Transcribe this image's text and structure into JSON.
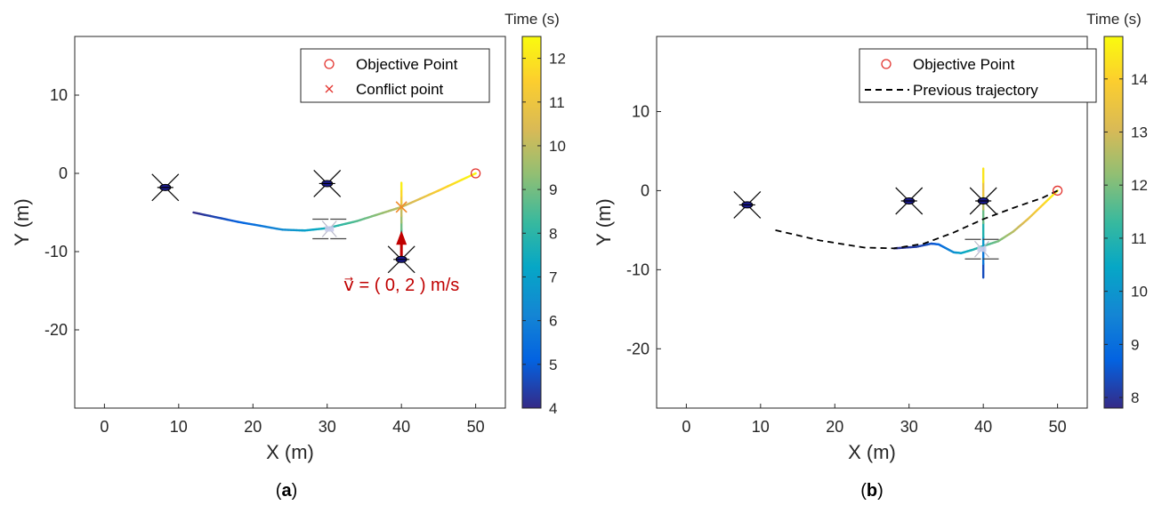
{
  "captions": {
    "a": {
      "open": "(",
      "letter": "a",
      "close": ")"
    },
    "b": {
      "open": "(",
      "letter": "b",
      "close": ")"
    }
  },
  "colors": {
    "objective": "#e3342f",
    "conflict": "#e3342f",
    "velocity_arrow": "#c00000",
    "previous_trajectory": "#000000",
    "drone": "#111111",
    "drone_hub": "#1a1a8c"
  },
  "icons": [
    "drone-icon",
    "objective-point-icon",
    "conflict-point-icon",
    "velocity-arrow-icon"
  ],
  "chart_data": [
    {
      "type": "line",
      "title": "",
      "xlabel": "X (m)",
      "ylabel": "Y (m)",
      "xlim": [
        -4,
        54
      ],
      "ylim": [
        -30,
        17.5
      ],
      "xticks": [
        "0",
        "10",
        "20",
        "30",
        "40",
        "50"
      ],
      "yticks": [
        "10",
        "0",
        "-10",
        "-20"
      ],
      "colorbar": {
        "label": "Time (s)",
        "range": [
          4,
          12.5
        ],
        "ticks": [
          "4",
          "5",
          "6",
          "7",
          "8",
          "9",
          "10",
          "11",
          "12"
        ]
      },
      "legend": {
        "position": "top-right",
        "entries": [
          "Objective Point",
          "Conflict point"
        ]
      },
      "series": [
        {
          "x": [
            12,
            18,
            24,
            27,
            30,
            34,
            38,
            40,
            45,
            50
          ],
          "y": [
            -5,
            -6.2,
            -7.2,
            -7.3,
            -7.0,
            -6.1,
            -4.9,
            -4.3,
            -2.2,
            0
          ],
          "t": [
            4,
            5,
            6.3,
            6.9,
            7.6,
            8.6,
            9.5,
            10,
            11.3,
            12.5
          ]
        },
        {
          "x": [
            40,
            40
          ],
          "y": [
            -8,
            -1.2
          ],
          "t": [
            8.1,
            12.5
          ]
        }
      ],
      "objective_point": {
        "x": 50,
        "y": 0
      },
      "conflict_point": {
        "x": 40,
        "y": -4.3
      },
      "drones": [
        {
          "x": 8.2,
          "y": -1.8
        },
        {
          "x": 30,
          "y": -1.3
        },
        {
          "x": 40,
          "y": -11
        }
      ],
      "swarm": [
        {
          "x": 30.3,
          "y": -7.1
        }
      ],
      "velocity_vector": {
        "x": 40,
        "y_from": -11,
        "y_to": -7.3
      },
      "annotation": {
        "text": "v⃗ = ( 0, 2 ) m/s",
        "x": 40,
        "y": -14.2
      }
    },
    {
      "type": "line",
      "title": "",
      "xlabel": "X (m)",
      "ylabel": "Y (m)",
      "xlim": [
        -4,
        54
      ],
      "ylim": [
        -27.5,
        19.5
      ],
      "xticks": [
        "0",
        "10",
        "20",
        "30",
        "40",
        "50"
      ],
      "yticks": [
        "10",
        "0",
        "-10",
        "-20"
      ],
      "colorbar": {
        "label": "Time (s)",
        "range": [
          7.8,
          14.8
        ],
        "ticks": [
          "8",
          "9",
          "10",
          "11",
          "12",
          "13",
          "14"
        ]
      },
      "legend": {
        "position": "top-right",
        "entries": [
          "Objective Point",
          "Previous trajectory"
        ]
      },
      "series": [
        {
          "x": [
            28,
            31,
            33,
            34,
            35,
            36,
            37,
            38.5,
            40,
            42,
            44,
            46,
            48,
            50
          ],
          "y": [
            -7.3,
            -7.1,
            -6.7,
            -6.8,
            -7.3,
            -7.8,
            -7.9,
            -7.5,
            -7,
            -6.4,
            -5.2,
            -3.6,
            -1.8,
            0
          ],
          "t": [
            7.9,
            8.1,
            8.4,
            8.7,
            9.2,
            9.8,
            10.3,
            10.8,
            11.3,
            11.9,
            12.6,
            13.3,
            14.0,
            14.8
          ]
        },
        {
          "x": [
            40,
            40
          ],
          "y": [
            -11,
            2.8
          ],
          "t": [
            7.9,
            14.8
          ]
        },
        {
          "name": "Previous trajectory",
          "x": [
            12,
            18,
            24,
            28,
            32,
            36,
            40,
            44,
            48,
            50
          ],
          "y": [
            -5,
            -6.3,
            -7.2,
            -7.3,
            -6.7,
            -5.3,
            -3.6,
            -2.2,
            -0.9,
            0
          ]
        }
      ],
      "objective_point": {
        "x": 50,
        "y": 0
      },
      "drones": [
        {
          "x": 8.2,
          "y": -1.8
        },
        {
          "x": 30,
          "y": -1.3
        },
        {
          "x": 40,
          "y": -1.3
        }
      ],
      "swarm": [
        {
          "x": 39.8,
          "y": -7.4
        }
      ]
    }
  ]
}
